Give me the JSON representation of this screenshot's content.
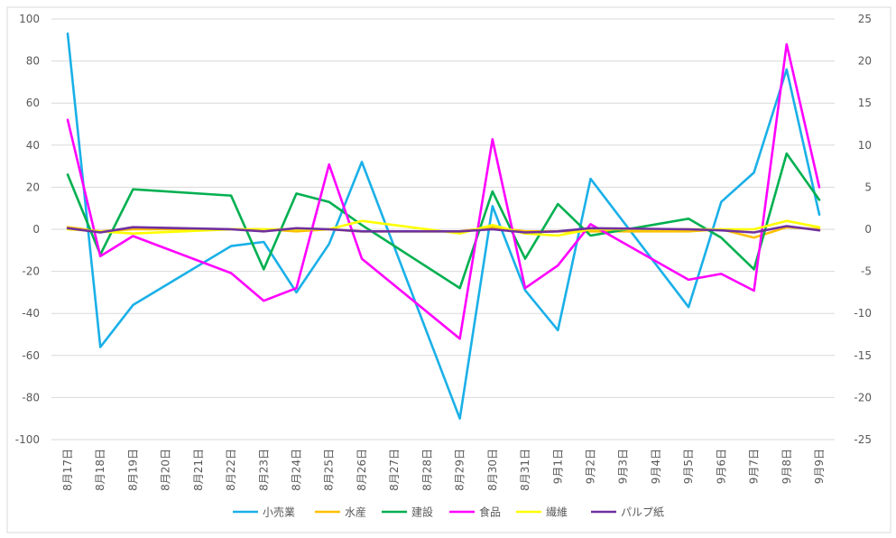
{
  "chart_data": {
    "type": "line",
    "categories": [
      "8月17日",
      "8月18日",
      "8月19日",
      "8月20日",
      "8月21日",
      "8月22日",
      "8月23日",
      "8月24日",
      "8月25日",
      "8月26日",
      "8月27日",
      "8月28日",
      "8月29日",
      "8月30日",
      "8月31日",
      "9月1日",
      "9月2日",
      "9月3日",
      "9月4日",
      "9月5日",
      "9月6日",
      "9月7日",
      "9月8日",
      "9月9日"
    ],
    "y_left": {
      "ylim": [
        -100,
        100
      ],
      "ticks": [
        -100,
        -80,
        -60,
        -40,
        -20,
        0,
        20,
        40,
        60,
        80,
        100
      ]
    },
    "y_right": {
      "ylim": [
        -25,
        25
      ],
      "ticks": [
        -25,
        -20,
        -15,
        -10,
        -5,
        0,
        5,
        10,
        15,
        20,
        25
      ]
    },
    "grid": true,
    "legend_position": "bottom",
    "series": [
      {
        "name": "小売業",
        "color": "#1ab0e8",
        "axis": "left",
        "values": [
          93,
          -56,
          -36,
          null,
          null,
          -8,
          -6,
          -30,
          -7,
          32,
          null,
          null,
          -90,
          11,
          -29,
          -48,
          24,
          null,
          null,
          -37,
          13,
          27,
          76,
          7
        ]
      },
      {
        "name": "水産",
        "color": "#ffc000",
        "axis": "left",
        "values": [
          1,
          -1,
          0,
          null,
          null,
          0,
          0,
          -1,
          0,
          -1,
          null,
          null,
          -1,
          1,
          -1,
          -1,
          -1,
          null,
          null,
          -1,
          0,
          -4,
          1,
          0
        ]
      },
      {
        "name": "建設",
        "color": "#00b050",
        "axis": "left",
        "values": [
          26,
          -12,
          19,
          null,
          null,
          16,
          -19,
          17,
          13,
          2,
          null,
          null,
          -28,
          18,
          -14,
          12,
          -3,
          null,
          null,
          5,
          -4,
          -19,
          36,
          14
        ]
      },
      {
        "name": "食品",
        "color": "#ff00ff",
        "axis": "right",
        "values": [
          13,
          -3.2,
          -0.8,
          null,
          null,
          -5.2,
          -8.5,
          -7,
          7.7,
          -3.5,
          null,
          null,
          -13,
          10.7,
          -7,
          -4.3,
          0.6,
          null,
          null,
          -6,
          -5.3,
          -7.3,
          22,
          5
        ]
      },
      {
        "name": "繊維",
        "color": "#ffff00",
        "axis": "left",
        "values": [
          0,
          -1,
          -2,
          null,
          null,
          0,
          0,
          0,
          0,
          4,
          null,
          null,
          -2,
          2,
          -2,
          -3,
          0,
          null,
          null,
          0,
          0,
          0,
          4,
          1
        ]
      },
      {
        "name": "パルプ紙",
        "color": "#7030a0",
        "axis": "left",
        "values": [
          0.5,
          -1.5,
          1,
          null,
          null,
          0,
          -1,
          0.5,
          0,
          -1,
          null,
          null,
          -1,
          0,
          -1.5,
          -1,
          0.5,
          null,
          null,
          0,
          -0.5,
          -1.5,
          1.5,
          -0.5
        ]
      }
    ]
  }
}
